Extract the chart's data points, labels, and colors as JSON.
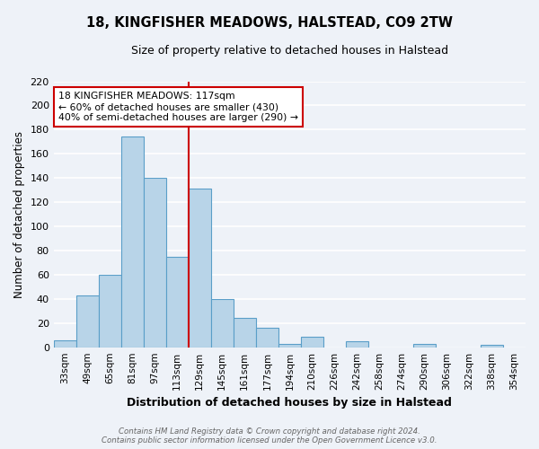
{
  "title": "18, KINGFISHER MEADOWS, HALSTEAD, CO9 2TW",
  "subtitle": "Size of property relative to detached houses in Halstead",
  "xlabel": "Distribution of detached houses by size in Halstead",
  "ylabel": "Number of detached properties",
  "bin_labels": [
    "33sqm",
    "49sqm",
    "65sqm",
    "81sqm",
    "97sqm",
    "113sqm",
    "129sqm",
    "145sqm",
    "161sqm",
    "177sqm",
    "194sqm",
    "210sqm",
    "226sqm",
    "242sqm",
    "258sqm",
    "274sqm",
    "290sqm",
    "306sqm",
    "322sqm",
    "338sqm",
    "354sqm"
  ],
  "bar_values": [
    6,
    43,
    60,
    174,
    140,
    75,
    131,
    40,
    24,
    16,
    3,
    9,
    0,
    5,
    0,
    0,
    3,
    0,
    0,
    2,
    0
  ],
  "bar_color": "#b8d4e8",
  "bar_edge_color": "#5a9ec8",
  "vline_x": 5.5,
  "vline_color": "#cc0000",
  "annotation_text": "18 KINGFISHER MEADOWS: 117sqm\n← 60% of detached houses are smaller (430)\n40% of semi-detached houses are larger (290) →",
  "annotation_box_color": "#ffffff",
  "annotation_box_edge": "#cc0000",
  "ylim": [
    0,
    220
  ],
  "yticks": [
    0,
    20,
    40,
    60,
    80,
    100,
    120,
    140,
    160,
    180,
    200,
    220
  ],
  "footer_line1": "Contains HM Land Registry data © Crown copyright and database right 2024.",
  "footer_line2": "Contains public sector information licensed under the Open Government Licence v3.0.",
  "bg_color": "#eef2f8",
  "grid_color": "#ffffff"
}
